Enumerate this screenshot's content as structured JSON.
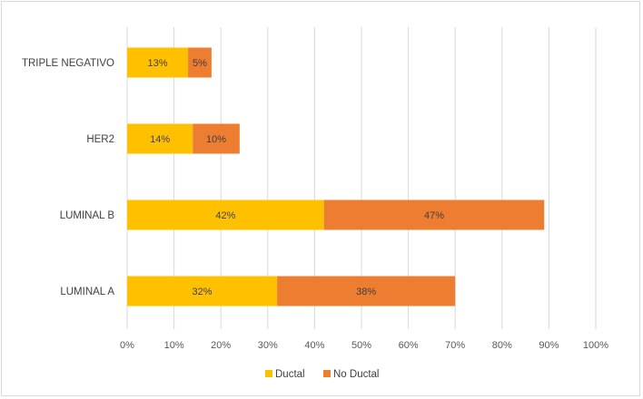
{
  "chart_data": {
    "type": "bar",
    "orientation": "horizontal",
    "stacked": true,
    "categories": [
      "TRIPLE NEGATIVO",
      "HER2",
      "LUMINAL B",
      "LUMINAL A"
    ],
    "series": [
      {
        "name": "Ductal",
        "values": [
          13,
          14,
          42,
          32
        ],
        "labels": [
          "13%",
          "14%",
          "42%",
          "32%"
        ],
        "color": "#FFC000"
      },
      {
        "name": "No Ductal",
        "values": [
          5,
          10,
          47,
          38
        ],
        "labels": [
          "5%",
          "10%",
          "47%",
          "38%"
        ],
        "color": "#ED7D31"
      }
    ],
    "xlim": [
      0,
      100
    ],
    "x_ticks": [
      "0%",
      "10%",
      "20%",
      "30%",
      "40%",
      "50%",
      "60%",
      "70%",
      "80%",
      "90%",
      "100%"
    ],
    "grid": "vertical",
    "legend": "bottom",
    "title": "",
    "xlabel": "",
    "ylabel": ""
  }
}
